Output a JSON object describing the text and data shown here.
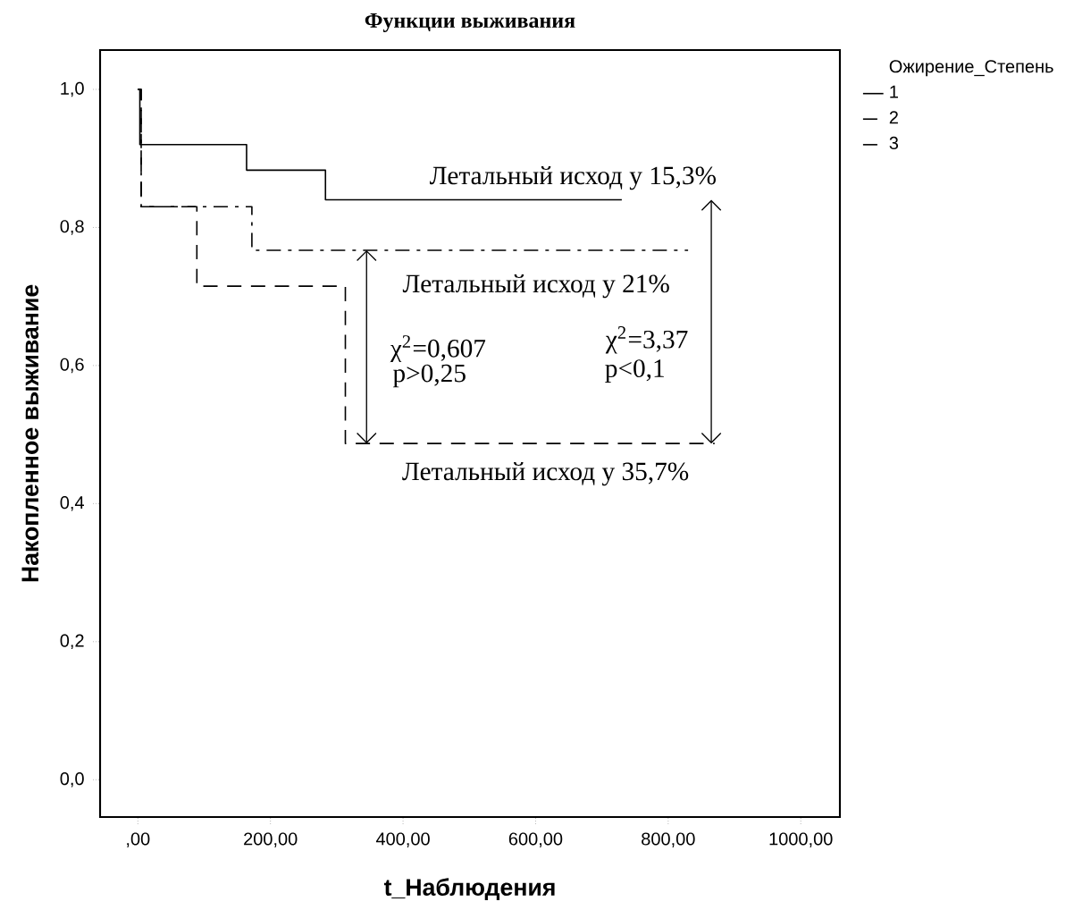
{
  "chart_data": {
    "type": "step",
    "title": "Функции выживания",
    "xlabel": "t_Наблюдения",
    "ylabel": "Накопленное выживание",
    "legend_title": "Ожирение_Степень",
    "legend": "top right",
    "marker": "none",
    "xlim": [
      -57,
      1059
    ],
    "ylim": [
      -0.054,
      1.057
    ],
    "xticks": [
      {
        "value": 0,
        "label": ",00"
      },
      {
        "value": 200,
        "label": "200,00"
      },
      {
        "value": 400,
        "label": "400,00"
      },
      {
        "value": 600,
        "label": "600,00"
      },
      {
        "value": 800,
        "label": "800,00"
      },
      {
        "value": 1000,
        "label": "1000,00"
      }
    ],
    "yticks": [
      {
        "value": 0,
        "label": "0,0"
      },
      {
        "value": 0.2,
        "label": "0,2"
      },
      {
        "value": 0.4,
        "label": "0,4"
      },
      {
        "value": 0.6,
        "label": "0,6"
      },
      {
        "value": 0.8,
        "label": "0,8"
      },
      {
        "value": 1.0,
        "label": "1,0"
      }
    ],
    "series": [
      {
        "name": "1",
        "color": "#000000",
        "line_style": "solid",
        "x": [
          0,
          3,
          164,
          283,
          730
        ],
        "values": [
          1.0,
          0.92,
          0.883,
          0.84,
          0.84
        ]
      },
      {
        "name": "2",
        "color": "#000000",
        "line_style": "dashdot",
        "x": [
          0,
          5,
          172,
          830
        ],
        "values": [
          1.0,
          0.83,
          0.767,
          0.767
        ]
      },
      {
        "name": "3",
        "color": "#000000",
        "line_style": "dashed",
        "x": [
          0,
          5,
          89,
          313,
          870
        ],
        "values": [
          1.0,
          0.83,
          0.715,
          0.487,
          0.487
        ]
      }
    ],
    "annotations": [
      {
        "text": "Летальный исход у 15,3%",
        "x": 730,
        "y": 0.84
      },
      "Летальный исход у 21%",
      "Летальный исход у 35,7%",
      "χ$^{2}$=0,607",
      "p>0,25",
      "χ$^{2}$=3,37",
      "p<0,1"
    ]
  }
}
